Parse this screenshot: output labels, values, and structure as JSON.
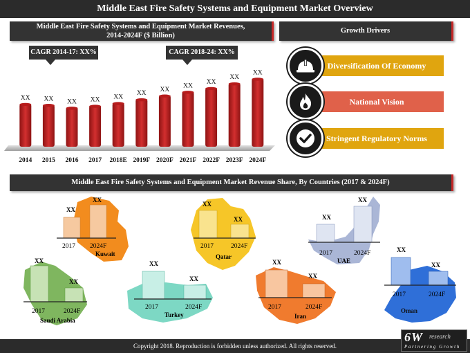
{
  "header": {
    "title": "Middle East Fire Safety Systems and Equipment Market Overview"
  },
  "revenue_panel": {
    "title_line1": "Middle East Fire Safety Systems and Equipment Market Revenues,",
    "title_line2": "2014-2024F ($ Billion)",
    "cagr_1": "CAGR 2014-17: XX%",
    "cagr_2": "CAGR 2018-24: XX%"
  },
  "chart_data": {
    "type": "bar",
    "categories": [
      "2014",
      "2015",
      "2016",
      "2017",
      "2018E",
      "2019F",
      "2020F",
      "2021F",
      "2022F",
      "2023F",
      "2024F"
    ],
    "data_labels": [
      "XX",
      "XX",
      "XX",
      "XX",
      "XX",
      "XX",
      "XX",
      "XX",
      "XX",
      "XX",
      "XX"
    ],
    "values": [
      4.6,
      4.5,
      4.2,
      4.4,
      4.7,
      5.1,
      5.5,
      5.9,
      6.3,
      6.8,
      7.3
    ],
    "ylim": [
      0,
      8
    ],
    "colors": {
      "bar": "#c62828"
    }
  },
  "drivers": {
    "title": "Growth Drivers",
    "items": [
      {
        "label": "Diversification Of Economy",
        "icon": "hard-hat-icon",
        "color": "#e0a50f"
      },
      {
        "label": "National Vision",
        "icon": "flame-icon",
        "color": "#e0614a"
      },
      {
        "label": "Stringent Regulatory Norms",
        "icon": "checkmark-icon",
        "color": "#e0a50f"
      }
    ]
  },
  "share_panel": {
    "title": "Middle East Fire Safety Systems and Equipment Market Revenue Share, By Countries (2017 & 2024F)",
    "countries": [
      {
        "name": "Kuwait",
        "year_a": "2017",
        "year_b": "2024F",
        "label_a": "XX",
        "label_b": "XX",
        "share_a": 0.55,
        "share_b": 0.85,
        "color": "#f28c1e"
      },
      {
        "name": "Qatar",
        "year_a": "2017",
        "year_b": "2024F",
        "label_a": "XX",
        "label_b": "XX",
        "share_a": 0.85,
        "share_b": 0.45,
        "color": "#f6c628"
      },
      {
        "name": "UAE",
        "year_a": "2017",
        "year_b": "2024F",
        "label_a": "XX",
        "label_b": "XX",
        "share_a": 0.45,
        "share_b": 0.9,
        "color": "#aab6d6"
      },
      {
        "name": "Saudi Arabia",
        "year_a": "2017",
        "year_b": "2024F",
        "label_a": "XX",
        "label_b": "XX",
        "share_a": 0.9,
        "share_b": 0.4,
        "color": "#7fb65f"
      },
      {
        "name": "Turkey",
        "year_a": "2017",
        "year_b": "2024F",
        "label_a": "XX",
        "label_b": "XX",
        "share_a": 0.85,
        "share_b": 0.45,
        "color": "#7dd8c4"
      },
      {
        "name": "Iran",
        "year_a": "2017",
        "year_b": "2024F",
        "label_a": "XX",
        "label_b": "XX",
        "share_a": 0.85,
        "share_b": 0.45,
        "color": "#f07b2e"
      },
      {
        "name": "Oman",
        "year_a": "2017",
        "year_b": "2024F",
        "label_a": "XX",
        "label_b": "XX",
        "share_a": 0.85,
        "share_b": 0.45,
        "color": "#2f6fd8"
      }
    ]
  },
  "footer": {
    "copyright": "Copyright 2018. Reproduction is forbidden unless authorized. All rights reserved."
  },
  "logo": {
    "main": "6W",
    "suffix": "research",
    "tagline": "Partnering Growth"
  }
}
